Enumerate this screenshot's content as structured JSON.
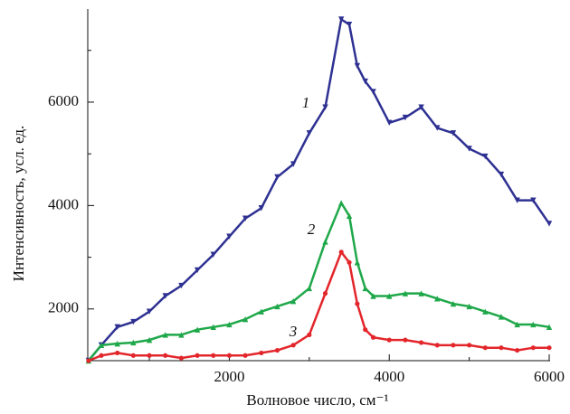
{
  "chart_data": {
    "type": "line",
    "xlabel": "Волновое число, см⁻¹",
    "ylabel": "Интенсивность, усл. ед.",
    "xlim": [
      230,
      6000
    ],
    "ylim": [
      1000,
      7800
    ],
    "xticks": [
      2000,
      4000,
      6000
    ],
    "yticks": [
      2000,
      4000,
      6000
    ],
    "xminorticks": [
      1000,
      3000,
      5000
    ],
    "yminorticks": [
      1000,
      3000,
      5000,
      7000
    ],
    "x": [
      240,
      400,
      600,
      800,
      1000,
      1200,
      1400,
      1600,
      1800,
      2000,
      2200,
      2400,
      2600,
      2800,
      3000,
      3200,
      3400,
      3500,
      3600,
      3700,
      3800,
      4000,
      4200,
      4400,
      4600,
      4800,
      5000,
      5200,
      5400,
      5600,
      5800,
      6000
    ],
    "series": [
      {
        "name": "1",
        "color": "#2e3192",
        "marker": "triangle-down",
        "values": [
          1000,
          1300,
          1650,
          1750,
          1950,
          2250,
          2450,
          2750,
          3050,
          3400,
          3750,
          3950,
          4550,
          4800,
          5400,
          5900,
          7600,
          7500,
          6700,
          6400,
          6200,
          5600,
          5700,
          5900,
          5500,
          5400,
          5100,
          4950,
          4600,
          4100,
          4100,
          3650
        ]
      },
      {
        "name": "2",
        "color": "#1fa84a",
        "marker": "triangle-up",
        "values": [
          1000,
          1300,
          1330,
          1350,
          1400,
          1500,
          1500,
          1600,
          1650,
          1700,
          1800,
          1950,
          2050,
          2150,
          2400,
          3300,
          4050,
          3800,
          2900,
          2400,
          2250,
          2250,
          2300,
          2300,
          2200,
          2100,
          2050,
          1950,
          1850,
          1700,
          1700,
          1650
        ]
      },
      {
        "name": "3",
        "color": "#e3262b",
        "marker": "circle",
        "values": [
          1000,
          1100,
          1150,
          1100,
          1100,
          1100,
          1050,
          1100,
          1100,
          1100,
          1100,
          1150,
          1200,
          1300,
          1500,
          2300,
          3100,
          2900,
          2100,
          1600,
          1450,
          1400,
          1400,
          1350,
          1300,
          1300,
          1300,
          1250,
          1250,
          1200,
          1250,
          1250
        ]
      }
    ]
  }
}
